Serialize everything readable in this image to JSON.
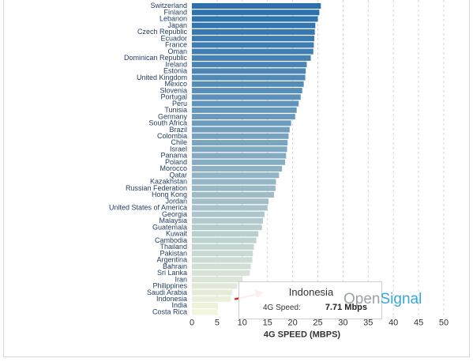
{
  "chart_data": {
    "type": "bar",
    "orientation": "horizontal",
    "categories": [
      "Switzerland",
      "Finland",
      "Lebanon",
      "Japan",
      "Czech Republic",
      "Ecuador",
      "France",
      "Oman",
      "Dominican Republic",
      "Ireland",
      "Estonia",
      "United Kingdom",
      "Mexico",
      "Slovenia",
      "Portugal",
      "Peru",
      "Tunisia",
      "Germany",
      "South Africa",
      "Brazil",
      "Colombia",
      "Chile",
      "Israel",
      "Panama",
      "Poland",
      "Morocco",
      "Qatar",
      "Kazakhstan",
      "Russian Federation",
      "Hong Kong",
      "Jordan",
      "United States of America",
      "Georgia",
      "Malaysia",
      "Guatemala",
      "Kuwait",
      "Cambodia",
      "Thailand",
      "Pakistan",
      "Argentina",
      "Bahrain",
      "Sri Lanka",
      "Iran",
      "Philippines",
      "Saudi Arabia",
      "Indonesia",
      "India",
      "Costa Rica"
    ],
    "values": [
      25.6,
      25.3,
      25.0,
      24.5,
      24.4,
      24.3,
      24.2,
      24.1,
      23.6,
      22.8,
      22.6,
      22.5,
      22.2,
      21.9,
      21.6,
      21.2,
      20.8,
      20.5,
      19.7,
      19.4,
      19.2,
      19.0,
      18.9,
      18.7,
      18.5,
      17.9,
      17.3,
      16.7,
      16.6,
      16.3,
      15.2,
      15.0,
      14.4,
      14.1,
      13.9,
      13.2,
      12.8,
      12.3,
      12.1,
      12.0,
      11.7,
      11.5,
      10.0,
      9.0,
      8.0,
      7.71,
      5.2,
      5.1
    ],
    "colors": {
      "start": "#2b70ad",
      "end": "#f3f5dc"
    },
    "xlabel": "4G SPEED (MBPS)",
    "xlim": [
      0,
      50
    ],
    "xticks": [
      0,
      5,
      10,
      15,
      20,
      25,
      30,
      35,
      40,
      45,
      50
    ],
    "grid": "vertical dashed"
  },
  "tooltip": {
    "title": "Indonesia",
    "label": "4G Speed:",
    "value": "7.71 Mbps"
  },
  "logo": {
    "part1": "Open",
    "part2": "Signal"
  },
  "arrow_color": "#e8231e"
}
